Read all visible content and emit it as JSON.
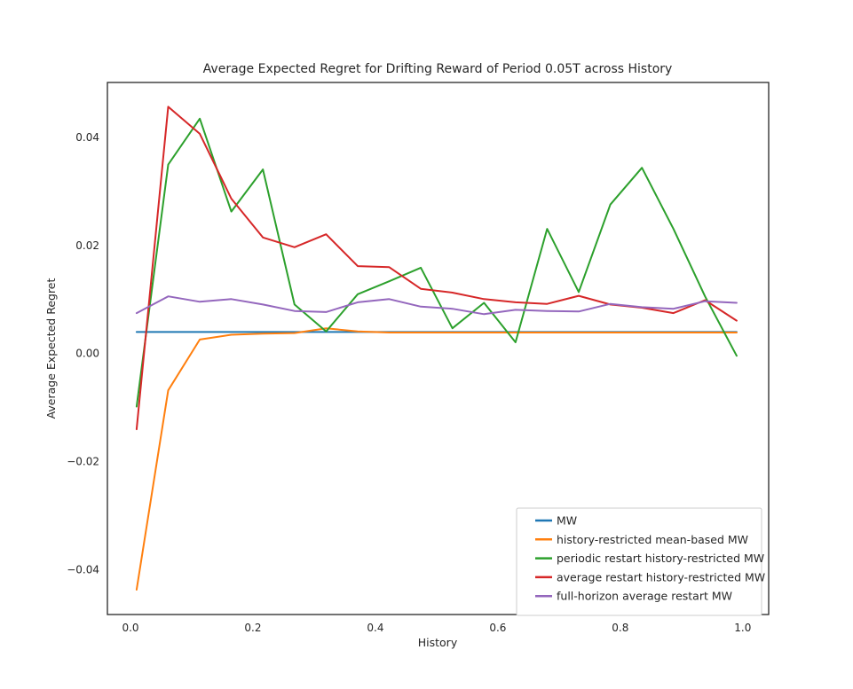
{
  "figure": {
    "background": "#ffffff",
    "spine_color": "#262626",
    "text_color": "#262626",
    "legend_border_color": "#cccccc"
  },
  "chart_data": {
    "type": "line",
    "title": "Average Expected Regret for Drifting Reward of Period 0.05T across History",
    "xlabel": "History",
    "ylabel": "Average Expected Regret",
    "xlim": [
      -0.0377,
      1.0423
    ],
    "ylim": [
      -0.0484,
      0.0501
    ],
    "grid": false,
    "legend_position": "lower right",
    "xticks": {
      "values": [
        0.0,
        0.2,
        0.4,
        0.6,
        0.8,
        1.0
      ],
      "labels": [
        "0.0",
        "0.2",
        "0.4",
        "0.6",
        "0.8",
        "1.0"
      ]
    },
    "yticks": {
      "values": [
        -0.04,
        -0.02,
        0.0,
        0.02,
        0.04
      ],
      "labels": [
        "−0.04",
        "−0.02",
        "0.00",
        "0.02",
        "0.04"
      ]
    },
    "x": [
      0.01,
      0.0616,
      0.1132,
      0.1647,
      0.2163,
      0.2679,
      0.3195,
      0.3711,
      0.4226,
      0.4742,
      0.5258,
      0.5774,
      0.6289,
      0.6805,
      0.7321,
      0.7837,
      0.8353,
      0.8868,
      0.9384,
      0.99
    ],
    "series": [
      {
        "name": "MW",
        "color": "#1f77b4",
        "values": [
          0.0039,
          0.0039,
          0.0039,
          0.0039,
          0.0039,
          0.0039,
          0.0039,
          0.0039,
          0.0039,
          0.0039,
          0.0039,
          0.0039,
          0.0039,
          0.0039,
          0.0039,
          0.0039,
          0.0039,
          0.0039,
          0.0039,
          0.0039
        ]
      },
      {
        "name": "history-restricted mean-based MW",
        "color": "#ff7f0e",
        "values": [
          -0.0438,
          -0.0069,
          0.0025,
          0.0034,
          0.0036,
          0.0037,
          0.0046,
          0.004,
          0.0038,
          0.0038,
          0.0038,
          0.0038,
          0.0038,
          0.0038,
          0.0038,
          0.0038,
          0.0038,
          0.0038,
          0.0038,
          0.0038
        ]
      },
      {
        "name": "periodic restart history-restricted MW",
        "color": "#2ca02c",
        "values": [
          -0.0099,
          0.0349,
          0.0434,
          0.0262,
          0.034,
          0.009,
          0.004,
          0.0109,
          0.0133,
          0.0158,
          0.0046,
          0.0093,
          0.002,
          0.023,
          0.0113,
          0.0275,
          0.0343,
          0.023,
          0.0105,
          -0.0005
        ]
      },
      {
        "name": "average restart history-restricted MW",
        "color": "#d62728",
        "values": [
          -0.0141,
          0.0456,
          0.0406,
          0.0286,
          0.0214,
          0.0196,
          0.022,
          0.0161,
          0.0159,
          0.0119,
          0.0112,
          0.01,
          0.0094,
          0.0091,
          0.0106,
          0.009,
          0.0084,
          0.0074,
          0.0098,
          0.006
        ]
      },
      {
        "name": "full-horizon average restart MW",
        "color": "#9467bd",
        "values": [
          0.0074,
          0.0105,
          0.0095,
          0.01,
          0.009,
          0.0078,
          0.0076,
          0.0094,
          0.01,
          0.0086,
          0.0082,
          0.0072,
          0.008,
          0.0078,
          0.0077,
          0.0091,
          0.0085,
          0.0082,
          0.0096,
          0.0093
        ]
      }
    ]
  }
}
